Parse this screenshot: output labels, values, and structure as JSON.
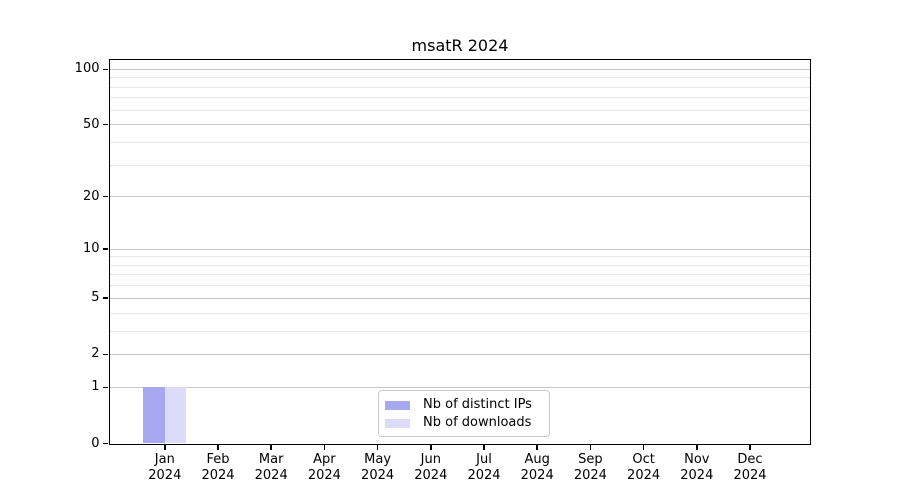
{
  "chart_data": {
    "type": "bar",
    "title": "msatR 2024",
    "x_labels": [
      {
        "month": "Jan",
        "year": "2024"
      },
      {
        "month": "Feb",
        "year": "2024"
      },
      {
        "month": "Mar",
        "year": "2024"
      },
      {
        "month": "Apr",
        "year": "2024"
      },
      {
        "month": "May",
        "year": "2024"
      },
      {
        "month": "Jun",
        "year": "2024"
      },
      {
        "month": "Jul",
        "year": "2024"
      },
      {
        "month": "Aug",
        "year": "2024"
      },
      {
        "month": "Sep",
        "year": "2024"
      },
      {
        "month": "Oct",
        "year": "2024"
      },
      {
        "month": "Nov",
        "year": "2024"
      },
      {
        "month": "Dec",
        "year": "2024"
      }
    ],
    "series": [
      {
        "name": "Nb of distinct IPs",
        "color": "#a8a8f0",
        "values": [
          1,
          0,
          0,
          0,
          0,
          0,
          0,
          0,
          0,
          0,
          0,
          0
        ]
      },
      {
        "name": "Nb of downloads",
        "color": "#dcdcf8",
        "values": [
          1,
          0,
          0,
          0,
          0,
          0,
          0,
          0,
          0,
          0,
          0,
          0
        ]
      }
    ],
    "y_scale": "log1p",
    "y_ticks": [
      0,
      1,
      2,
      5,
      10,
      20,
      50,
      100
    ],
    "y_minor_gridlines": [
      3,
      4,
      6,
      7,
      8,
      9,
      30,
      40,
      60,
      70,
      80,
      90
    ],
    "ylim": [
      0,
      113
    ],
    "xlabel": "",
    "ylabel": "",
    "grid": true,
    "legend_position": "lower center"
  }
}
